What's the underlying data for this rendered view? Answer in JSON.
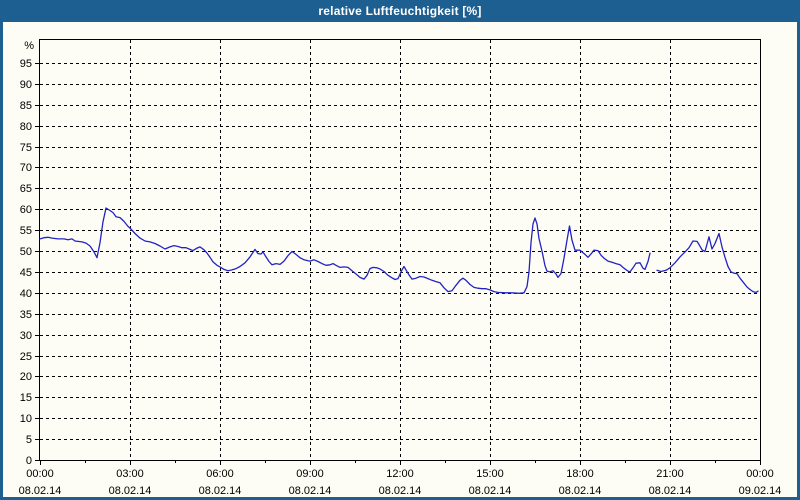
{
  "window": {
    "title": "relative Luftfeuchtigkeit [%]"
  },
  "colors": {
    "titlebar": "#1E5F91",
    "window_border": "#1E5F91",
    "background": "#FDFDF6",
    "grid": "#000000",
    "line": "#2323C3",
    "text": "#000000"
  },
  "chart_data": {
    "type": "line",
    "title": "relative Luftfeuchtigkeit [%]",
    "ylabel": "%",
    "ylim": [
      0,
      100
    ],
    "grid": true,
    "legend": "none",
    "y_ticks": [
      0,
      5,
      10,
      15,
      20,
      25,
      30,
      35,
      40,
      45,
      50,
      55,
      60,
      65,
      70,
      75,
      80,
      85,
      90,
      95
    ],
    "x_axis": {
      "tick_hours": [
        0,
        3,
        6,
        9,
        12,
        15,
        18,
        21,
        24
      ],
      "minor_tick_hours": [
        1.5,
        4.5,
        7.5,
        10.5,
        13.5,
        16.5,
        19.5,
        22.5
      ],
      "tick_labels": [
        {
          "time": "00:00",
          "date": "08.02.14"
        },
        {
          "time": "03:00",
          "date": "08.02.14"
        },
        {
          "time": "06:00",
          "date": "08.02.14"
        },
        {
          "time": "09:00",
          "date": "08.02.14"
        },
        {
          "time": "12:00",
          "date": "08.02.14"
        },
        {
          "time": "15:00",
          "date": "08.02.14"
        },
        {
          "time": "18:00",
          "date": "08.02.14"
        },
        {
          "time": "21:00",
          "date": "08.02.14"
        },
        {
          "time": "00:00",
          "date": "09.02.14"
        }
      ],
      "range_minutes": [
        0,
        1440
      ]
    },
    "series": [
      {
        "name": "relative Luftfeuchtigkeit [%]",
        "color": "#2323C3",
        "x_unit": "minutes_since_00:00",
        "segments": [
          [
            [
              0,
              52.9
            ],
            [
              8,
              53.2
            ],
            [
              16,
              53.3
            ],
            [
              24,
              53.1
            ],
            [
              36,
              52.9
            ],
            [
              48,
              52.9
            ],
            [
              56,
              52.7
            ],
            [
              64,
              52.9
            ],
            [
              70,
              52.4
            ],
            [
              84,
              52.2
            ],
            [
              92,
              51.9
            ],
            [
              100,
              51.2
            ],
            [
              108,
              49.8
            ],
            [
              114,
              48.4
            ],
            [
              120,
              52.0
            ],
            [
              126,
              57.0
            ],
            [
              132,
              60.3
            ],
            [
              140,
              59.7
            ],
            [
              146,
              59.2
            ],
            [
              152,
              58.2
            ],
            [
              160,
              58.0
            ],
            [
              168,
              57.1
            ],
            [
              176,
              55.9
            ],
            [
              180,
              55.5
            ],
            [
              190,
              54.2
            ],
            [
              200,
              53.1
            ],
            [
              210,
              52.4
            ],
            [
              220,
              52.2
            ],
            [
              230,
              51.8
            ],
            [
              240,
              51.2
            ],
            [
              250,
              50.5
            ],
            [
              260,
              51.0
            ],
            [
              268,
              51.3
            ],
            [
              276,
              51.1
            ],
            [
              284,
              50.8
            ],
            [
              292,
              50.8
            ],
            [
              300,
              50.4
            ],
            [
              306,
              50.1
            ],
            [
              314,
              50.7
            ],
            [
              320,
              51.0
            ],
            [
              328,
              50.3
            ],
            [
              334,
              49.5
            ],
            [
              340,
              48.5
            ],
            [
              346,
              47.4
            ],
            [
              354,
              46.6
            ],
            [
              360,
              46.2
            ],
            [
              368,
              45.6
            ],
            [
              376,
              45.3
            ],
            [
              384,
              45.5
            ],
            [
              392,
              45.8
            ],
            [
              400,
              46.3
            ],
            [
              410,
              47.2
            ],
            [
              420,
              48.6
            ],
            [
              430,
              50.4
            ],
            [
              436,
              49.4
            ],
            [
              442,
              49.3
            ],
            [
              446,
              49.8
            ],
            [
              452,
              48.6
            ],
            [
              458,
              47.5
            ],
            [
              464,
              46.7
            ],
            [
              472,
              47.0
            ],
            [
              480,
              46.8
            ],
            [
              488,
              47.6
            ],
            [
              496,
              48.9
            ],
            [
              504,
              49.9
            ],
            [
              512,
              49.2
            ],
            [
              520,
              48.4
            ],
            [
              528,
              47.9
            ],
            [
              536,
              47.7
            ],
            [
              540,
              47.6
            ],
            [
              548,
              47.9
            ],
            [
              556,
              47.5
            ],
            [
              564,
              47.0
            ],
            [
              572,
              46.6
            ],
            [
              580,
              46.7
            ],
            [
              586,
              47.0
            ],
            [
              592,
              46.6
            ],
            [
              600,
              46.1
            ],
            [
              608,
              46.2
            ],
            [
              616,
              46.1
            ],
            [
              624,
              45.3
            ],
            [
              632,
              44.5
            ],
            [
              640,
              43.7
            ],
            [
              648,
              43.3
            ],
            [
              654,
              44.2
            ],
            [
              660,
              45.8
            ],
            [
              666,
              46.1
            ],
            [
              674,
              46.0
            ],
            [
              680,
              45.7
            ],
            [
              688,
              45.1
            ],
            [
              696,
              44.2
            ],
            [
              704,
              43.6
            ],
            [
              710,
              43.2
            ],
            [
              716,
              43.4
            ],
            [
              724,
              45.5
            ],
            [
              728,
              46.3
            ],
            [
              732,
              45.5
            ],
            [
              738,
              44.3
            ],
            [
              744,
              43.3
            ],
            [
              752,
              43.5
            ],
            [
              760,
              43.9
            ],
            [
              768,
              43.8
            ],
            [
              776,
              43.4
            ],
            [
              784,
              43.0
            ],
            [
              792,
              42.7
            ],
            [
              800,
              42.4
            ],
            [
              808,
              41.2
            ],
            [
              816,
              40.3
            ],
            [
              824,
              40.5
            ],
            [
              832,
              41.8
            ],
            [
              840,
              43.0
            ],
            [
              846,
              43.5
            ],
            [
              852,
              43.0
            ],
            [
              860,
              42.0
            ],
            [
              868,
              41.3
            ],
            [
              876,
              41.1
            ],
            [
              884,
              41.0
            ],
            [
              892,
              41.0
            ],
            [
              900,
              40.7
            ],
            [
              908,
              40.3
            ],
            [
              916,
              40.1
            ],
            [
              930,
              40.0
            ],
            [
              944,
              40.0
            ],
            [
              958,
              39.9
            ],
            [
              968,
              40.0
            ],
            [
              974,
              41.5
            ],
            [
              978,
              45.0
            ],
            [
              982,
              52.0
            ],
            [
              986,
              56.5
            ],
            [
              990,
              57.9
            ],
            [
              994,
              56.5
            ],
            [
              998,
              53.0
            ],
            [
              1004,
              50.0
            ],
            [
              1010,
              46.5
            ],
            [
              1014,
              45.2
            ],
            [
              1020,
              45.0
            ],
            [
              1026,
              45.3
            ],
            [
              1032,
              44.5
            ],
            [
              1036,
              43.7
            ],
            [
              1042,
              44.6
            ],
            [
              1048,
              48.3
            ],
            [
              1054,
              52.6
            ],
            [
              1059,
              56.0
            ],
            [
              1064,
              52.6
            ],
            [
              1070,
              50.2
            ],
            [
              1080,
              50.2
            ],
            [
              1090,
              49.2
            ],
            [
              1096,
              48.5
            ],
            [
              1102,
              49.3
            ],
            [
              1108,
              50.2
            ],
            [
              1116,
              50.1
            ],
            [
              1122,
              49.0
            ],
            [
              1128,
              48.3
            ],
            [
              1136,
              47.6
            ],
            [
              1144,
              47.3
            ],
            [
              1152,
              47.0
            ],
            [
              1160,
              46.7
            ],
            [
              1168,
              45.9
            ],
            [
              1176,
              45.2
            ],
            [
              1180,
              45.0
            ],
            [
              1186,
              46.0
            ],
            [
              1192,
              47.1
            ],
            [
              1200,
              47.2
            ],
            [
              1206,
              45.9
            ],
            [
              1210,
              45.6
            ],
            [
              1216,
              47.5
            ],
            [
              1220,
              49.5
            ]
          ],
          [
            [
              1234,
              45.4
            ],
            [
              1242,
              45.1
            ],
            [
              1252,
              45.4
            ],
            [
              1260,
              46.0
            ],
            [
              1270,
              47.2
            ],
            [
              1280,
              48.6
            ],
            [
              1290,
              49.8
            ],
            [
              1298,
              50.8
            ],
            [
              1306,
              52.4
            ],
            [
              1314,
              52.3
            ],
            [
              1318,
              51.6
            ],
            [
              1324,
              50.3
            ],
            [
              1330,
              49.9
            ],
            [
              1338,
              53.4
            ],
            [
              1344,
              50.5
            ],
            [
              1350,
              51.8
            ],
            [
              1358,
              54.2
            ],
            [
              1364,
              51.0
            ],
            [
              1370,
              48.5
            ],
            [
              1376,
              46.3
            ],
            [
              1382,
              45.0
            ],
            [
              1388,
              44.7
            ],
            [
              1394,
              44.6
            ],
            [
              1400,
              43.5
            ],
            [
              1408,
              42.3
            ],
            [
              1414,
              41.4
            ],
            [
              1420,
              40.8
            ],
            [
              1426,
              40.3
            ],
            [
              1432,
              40.1
            ],
            [
              1436,
              40.4
            ]
          ]
        ]
      }
    ]
  }
}
